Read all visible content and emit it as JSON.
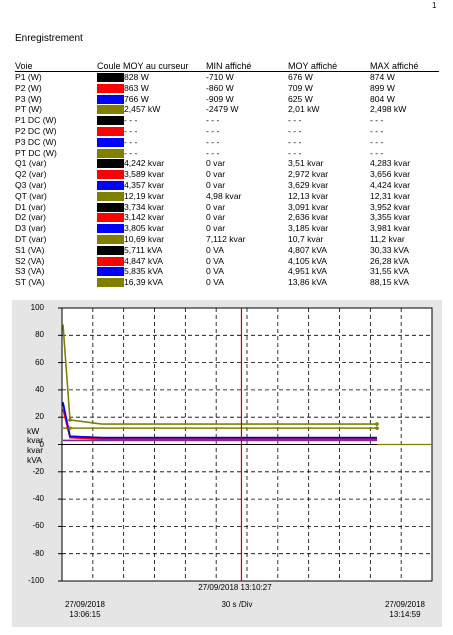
{
  "page_number": "1",
  "title": "Enregistrement",
  "columns": {
    "voie": "Voie",
    "couleur": "Coule",
    "moy_curseur": "MOY au curseur",
    "min": "MIN affiché",
    "moy": "MOY affiché",
    "max": "MAX affiché"
  },
  "rows": [
    {
      "voie": "P1 (W)",
      "color": "#000000",
      "cursor": "828 W",
      "min": "-710 W",
      "moy": "676 W",
      "max": "874 W"
    },
    {
      "voie": "P2 (W)",
      "color": "#ff0000",
      "cursor": "863 W",
      "min": "-860 W",
      "moy": "709 W",
      "max": "899 W"
    },
    {
      "voie": "P3 (W)",
      "color": "#0000ff",
      "cursor": "766 W",
      "min": "-909 W",
      "moy": "625 W",
      "max": "804 W"
    },
    {
      "voie": "PT (W)",
      "color": "#808000",
      "cursor": "2,457 kW",
      "min": "-2479 W",
      "moy": "2,01 kW",
      "max": "2,498 kW"
    },
    {
      "voie": "P1 DC (W)",
      "color": "#000000",
      "cursor": "- - -",
      "min": "- - -",
      "moy": "- - -",
      "max": "- - -"
    },
    {
      "voie": "P2 DC (W)",
      "color": "#ff0000",
      "cursor": "- - -",
      "min": "- - -",
      "moy": "- - -",
      "max": "- - -"
    },
    {
      "voie": "P3 DC (W)",
      "color": "#0000ff",
      "cursor": "- - -",
      "min": "- - -",
      "moy": "- - -",
      "max": "- - -"
    },
    {
      "voie": "PT DC (W)",
      "color": "#808000",
      "cursor": "- - -",
      "min": "- - -",
      "moy": "- - -",
      "max": "- - -"
    },
    {
      "voie": "Q1 (var)",
      "color": "#000000",
      "cursor": "4,242 kvar",
      "min": "0 var",
      "moy": "3,51 kvar",
      "max": "4,283 kvar"
    },
    {
      "voie": "Q2 (var)",
      "color": "#ff0000",
      "cursor": "3,589 kvar",
      "min": "0 var",
      "moy": "2,972 kvar",
      "max": "3,656 kvar"
    },
    {
      "voie": "Q3 (var)",
      "color": "#0000ff",
      "cursor": "4,357 kvar",
      "min": "0 var",
      "moy": "3,629 kvar",
      "max": "4,424 kvar"
    },
    {
      "voie": "QT (var)",
      "color": "#808000",
      "cursor": "12,19 kvar",
      "min": "4,98 kvar",
      "moy": "12,13 kvar",
      "max": "12,31 kvar"
    },
    {
      "voie": "D1 (var)",
      "color": "#000000",
      "cursor": "3,734 kvar",
      "min": "0 var",
      "moy": "3,091 kvar",
      "max": "3,952 kvar"
    },
    {
      "voie": "D2 (var)",
      "color": "#ff0000",
      "cursor": "3,142 kvar",
      "min": "0 var",
      "moy": "2,636 kvar",
      "max": "3,355 kvar"
    },
    {
      "voie": "D3 (var)",
      "color": "#0000ff",
      "cursor": "3,805 kvar",
      "min": "0 var",
      "moy": "3,185 kvar",
      "max": "3,981 kvar"
    },
    {
      "voie": "DT (var)",
      "color": "#808000",
      "cursor": "10,69 kvar",
      "min": "7,112 kvar",
      "moy": "10,7 kvar",
      "max": "11,2 kvar"
    },
    {
      "voie": "S1 (VA)",
      "color": "#000000",
      "cursor": "5,711 kVA",
      "min": "0 VA",
      "moy": "4,807 kVA",
      "max": "30,33 kVA"
    },
    {
      "voie": "S2 (VA)",
      "color": "#ff0000",
      "cursor": "4,847 kVA",
      "min": "0 VA",
      "moy": "4,105 kVA",
      "max": "26,28 kVA"
    },
    {
      "voie": "S3 (VA)",
      "color": "#0000ff",
      "cursor": "5,835 kVA",
      "min": "0 VA",
      "moy": "4,951 kVA",
      "max": "31,55 kVA"
    },
    {
      "voie": "ST (VA)",
      "color": "#808000",
      "cursor": "16,39 kVA",
      "min": "0 VA",
      "moy": "13,86 kVA",
      "max": "88,15 kVA"
    }
  ],
  "chart_data": {
    "type": "line",
    "ylim": [
      -100,
      100
    ],
    "yticks": [
      "100",
      "80",
      "60",
      "40",
      "20",
      "0",
      "-20",
      "-40",
      "-60",
      "-80",
      "-100"
    ],
    "unit_labels": [
      "kW",
      "kvar",
      "kvar",
      "kVA"
    ],
    "grid": true,
    "cursor_label": "27/09/2018 13:10:27",
    "start_date": "27/09/2018",
    "start_time": "13:06:15",
    "end_date": "27/09/2018",
    "end_time": "13:14:59",
    "scale_label": "30 s /Div",
    "colors": {
      "black": "#000000",
      "red": "#ff0000",
      "blue": "#0000ff",
      "olive": "#808000",
      "cursor": "#cc0000",
      "purple": "#7a2aa0"
    },
    "series": [
      {
        "color": "#808000",
        "values": [
          88,
          18,
          15,
          15,
          15,
          15
        ]
      },
      {
        "color": "#808000",
        "values": [
          12,
          12,
          12,
          12,
          12,
          12
        ]
      },
      {
        "color": "#000000",
        "values": [
          30,
          6,
          5,
          5,
          5,
          5
        ]
      },
      {
        "color": "#ff0000",
        "values": [
          26,
          5,
          4,
          4,
          4,
          4
        ]
      },
      {
        "color": "#0000ff",
        "values": [
          31,
          6,
          5,
          5,
          5,
          5
        ]
      },
      {
        "color": "#7a2aa0",
        "values": [
          3,
          3,
          3,
          3,
          3,
          3
        ]
      }
    ]
  }
}
